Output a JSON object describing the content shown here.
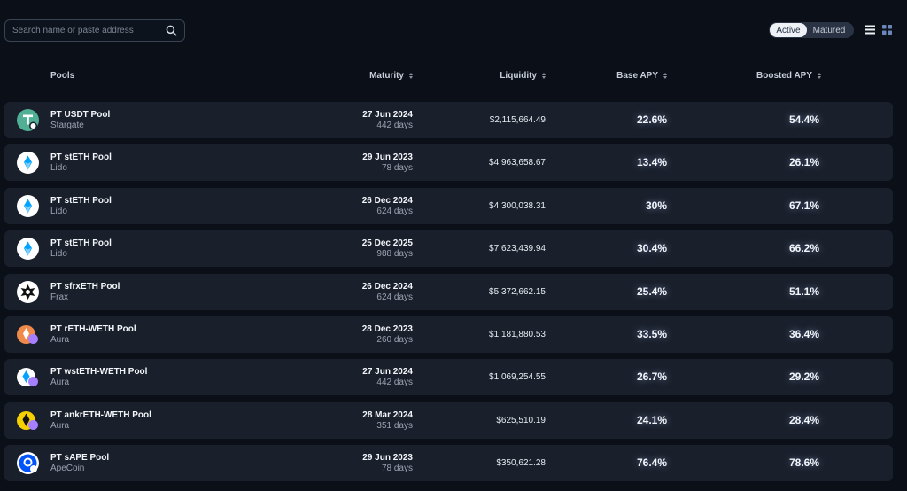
{
  "search": {
    "placeholder": "Search name or paste address"
  },
  "toggle": {
    "active": "Active",
    "matured": "Matured"
  },
  "icons": {
    "search": "search-icon",
    "list_view": "list-view-icon",
    "grid_view": "grid-view-icon"
  },
  "colors": {
    "background": "#0b1018",
    "row": "#1a202b",
    "toggle_bg": "#2a3344"
  },
  "table": {
    "headers": {
      "pools": "Pools",
      "maturity": "Maturity",
      "liquidity": "Liquidity",
      "base_apy": "Base APY",
      "boosted_apy": "Boosted APY"
    },
    "rows": [
      {
        "name": "PT USDT Pool",
        "protocol": "Stargate",
        "date": "27 Jun 2024",
        "days": "442 days",
        "liquidity": "$2,115,664.49",
        "base": "22.6%",
        "boost": "54.4%",
        "logo": "usdt-logo-icon",
        "logo_color": "#50af95"
      },
      {
        "name": "PT stETH Pool",
        "protocol": "Lido",
        "date": "29 Jun 2023",
        "days": "78 days",
        "liquidity": "$4,963,658.67",
        "base": "13.4%",
        "boost": "26.1%",
        "logo": "steth-logo-icon",
        "logo_color": "#00a3ff"
      },
      {
        "name": "PT stETH Pool",
        "protocol": "Lido",
        "date": "26 Dec 2024",
        "days": "624 days",
        "liquidity": "$4,300,038.31",
        "base": "30%",
        "boost": "67.1%",
        "logo": "steth-logo-icon",
        "logo_color": "#00a3ff"
      },
      {
        "name": "PT stETH Pool",
        "protocol": "Lido",
        "date": "25 Dec 2025",
        "days": "988 days",
        "liquidity": "$7,623,439.94",
        "base": "30.4%",
        "boost": "66.2%",
        "logo": "steth-logo-icon",
        "logo_color": "#00a3ff"
      },
      {
        "name": "PT sfrxETH Pool",
        "protocol": "Frax",
        "date": "26 Dec 2024",
        "days": "624 days",
        "liquidity": "$5,372,662.15",
        "base": "25.4%",
        "boost": "51.1%",
        "logo": "sfrxeth-logo-icon",
        "logo_color": "#ffffff"
      },
      {
        "name": "PT rETH-WETH Pool",
        "protocol": "Aura",
        "date": "28 Dec 2023",
        "days": "260 days",
        "liquidity": "$1,181,880.53",
        "base": "33.5%",
        "boost": "36.4%",
        "logo": "reth-logo-icon",
        "logo_color": "#f08a4b"
      },
      {
        "name": "PT wstETH-WETH Pool",
        "protocol": "Aura",
        "date": "27 Jun 2024",
        "days": "442 days",
        "liquidity": "$1,069,254.55",
        "base": "26.7%",
        "boost": "29.2%",
        "logo": "wsteth-logo-icon",
        "logo_color": "#00a3ff"
      },
      {
        "name": "PT ankrETH-WETH Pool",
        "protocol": "Aura",
        "date": "28 Mar 2024",
        "days": "351 days",
        "liquidity": "$625,510.19",
        "base": "24.1%",
        "boost": "28.4%",
        "logo": "ankreth-logo-icon",
        "logo_color": "#f5d000"
      },
      {
        "name": "PT sAPE Pool",
        "protocol": "ApeCoin",
        "date": "29 Jun 2023",
        "days": "78 days",
        "liquidity": "$350,621.28",
        "base": "76.4%",
        "boost": "78.6%",
        "logo": "sape-logo-icon",
        "logo_color": "#0054fa"
      }
    ]
  }
}
